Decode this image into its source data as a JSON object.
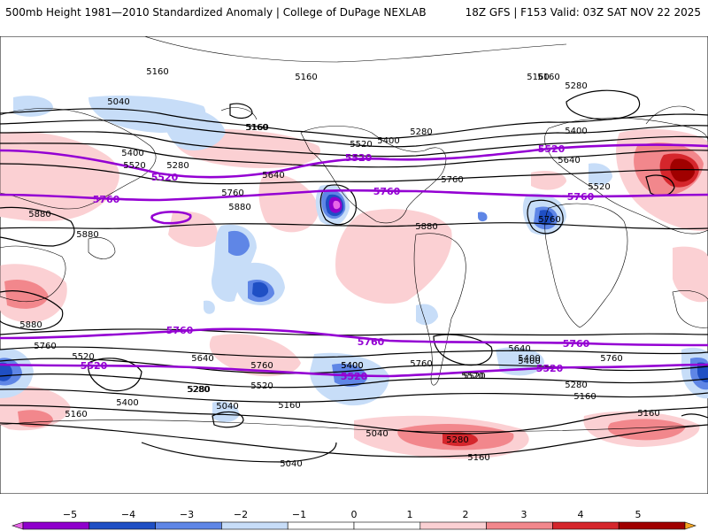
{
  "header": {
    "title": "500mb Height 1981—2010 Standardized Anomaly | College of DuPage NEXLAB",
    "run": "18Z GFS | F153 Valid: 03Z SAT NOV 22 2025"
  },
  "map": {
    "colors": {
      "neg5": "#e866e8",
      "neg4": "#8f00cc",
      "neg3": "#1f4fc4",
      "neg2": "#5f86e6",
      "neg1": "#c7ddf8",
      "zero": "#ffffff",
      "pos1": "#fbd0d3",
      "pos2": "#f2878c",
      "pos3": "#d5262c",
      "pos4": "#a00000",
      "pos5": "#f6a623",
      "contour": "#000000",
      "highlight": "#9400d3"
    },
    "height_labels": [
      {
        "text": "5160"
      },
      {
        "text": "5160"
      },
      {
        "text": "5160"
      },
      {
        "text": "5280"
      },
      {
        "text": "5040"
      },
      {
        "text": "5160"
      },
      {
        "text": "5520"
      },
      {
        "text": "5400"
      },
      {
        "text": "5280"
      },
      {
        "text": "5400"
      },
      {
        "text": "5400"
      },
      {
        "text": "5520"
      },
      {
        "text": "5280"
      },
      {
        "text": "5640"
      },
      {
        "text": "5760"
      },
      {
        "text": "5640"
      },
      {
        "text": "5520"
      },
      {
        "text": "5760"
      },
      {
        "text": "5880"
      },
      {
        "text": "5760"
      },
      {
        "text": "5880"
      },
      {
        "text": "5880"
      },
      {
        "text": "5880"
      },
      {
        "text": "5880"
      },
      {
        "text": "5760"
      },
      {
        "text": "5640"
      },
      {
        "text": "5400"
      },
      {
        "text": "5520"
      },
      {
        "text": "5400"
      },
      {
        "text": "5640"
      },
      {
        "text": "5760"
      },
      {
        "text": "5400"
      },
      {
        "text": "5760"
      },
      {
        "text": "5520"
      },
      {
        "text": "5280"
      },
      {
        "text": "5520"
      },
      {
        "text": "5400"
      },
      {
        "text": "5040"
      },
      {
        "text": "5160"
      },
      {
        "text": "5160"
      },
      {
        "text": "5280"
      },
      {
        "text": "5160"
      },
      {
        "text": "5040"
      },
      {
        "text": "5280"
      },
      {
        "text": "5160"
      },
      {
        "text": "5040"
      },
      {
        "text": "5160"
      },
      {
        "text": "5760"
      },
      {
        "text": "5520"
      },
      {
        "text": "5280"
      },
      {
        "text": "5160"
      },
      {
        "text": "5160"
      },
      {
        "text": "5400"
      }
    ],
    "highlight_labels": [
      {
        "text": "5520"
      },
      {
        "text": "5520"
      },
      {
        "text": "5520"
      },
      {
        "text": "5760"
      },
      {
        "text": "5760"
      },
      {
        "text": "5760"
      },
      {
        "text": "5760"
      },
      {
        "text": "5760"
      },
      {
        "text": "5760"
      },
      {
        "text": "5520"
      },
      {
        "text": "5520"
      },
      {
        "text": "5520"
      }
    ]
  },
  "colorbar": {
    "ticks": [
      "−5",
      "−4",
      "−3",
      "−2",
      "−1",
      "0",
      "1",
      "2",
      "3",
      "4",
      "5"
    ],
    "bins": [
      "#e866e8",
      "#8f00cc",
      "#1f4fc4",
      "#5f86e6",
      "#c7ddf8",
      "#ffffff",
      "#ffffff",
      "#fbd0d3",
      "#f2878c",
      "#d5262c",
      "#a00000",
      "#f6a623"
    ]
  }
}
